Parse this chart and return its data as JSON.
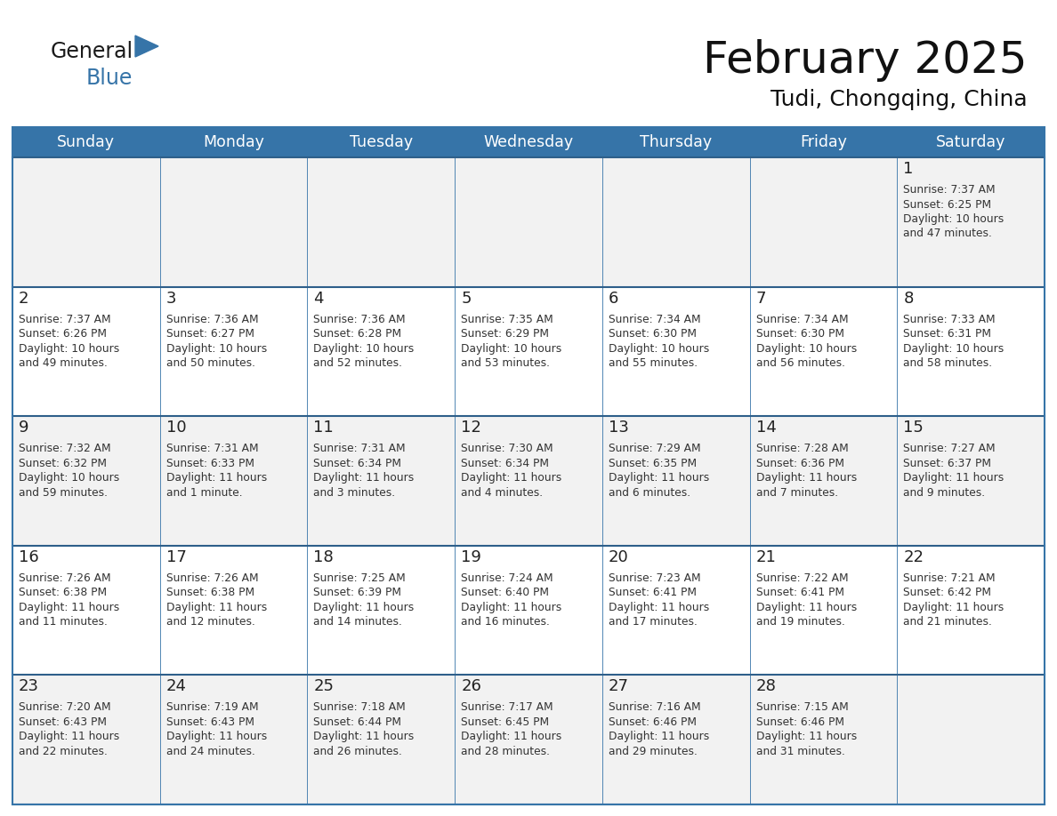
{
  "title": "February 2025",
  "subtitle": "Tudi, Chongqing, China",
  "header_bg": "#3674a8",
  "header_text_color": "#FFFFFF",
  "cell_bg_odd": "#f2f2f2",
  "cell_bg_even": "#ffffff",
  "cell_border_color": "#3674a8",
  "day_number_color": "#222222",
  "cell_text_color": "#333333",
  "week_sep_color": "#2e5f8a",
  "days_of_week": [
    "Sunday",
    "Monday",
    "Tuesday",
    "Wednesday",
    "Thursday",
    "Friday",
    "Saturday"
  ],
  "weeks": [
    [
      {
        "day": null,
        "info": ""
      },
      {
        "day": null,
        "info": ""
      },
      {
        "day": null,
        "info": ""
      },
      {
        "day": null,
        "info": ""
      },
      {
        "day": null,
        "info": ""
      },
      {
        "day": null,
        "info": ""
      },
      {
        "day": 1,
        "info": "Sunrise: 7:37 AM\nSunset: 6:25 PM\nDaylight: 10 hours\nand 47 minutes."
      }
    ],
    [
      {
        "day": 2,
        "info": "Sunrise: 7:37 AM\nSunset: 6:26 PM\nDaylight: 10 hours\nand 49 minutes."
      },
      {
        "day": 3,
        "info": "Sunrise: 7:36 AM\nSunset: 6:27 PM\nDaylight: 10 hours\nand 50 minutes."
      },
      {
        "day": 4,
        "info": "Sunrise: 7:36 AM\nSunset: 6:28 PM\nDaylight: 10 hours\nand 52 minutes."
      },
      {
        "day": 5,
        "info": "Sunrise: 7:35 AM\nSunset: 6:29 PM\nDaylight: 10 hours\nand 53 minutes."
      },
      {
        "day": 6,
        "info": "Sunrise: 7:34 AM\nSunset: 6:30 PM\nDaylight: 10 hours\nand 55 minutes."
      },
      {
        "day": 7,
        "info": "Sunrise: 7:34 AM\nSunset: 6:30 PM\nDaylight: 10 hours\nand 56 minutes."
      },
      {
        "day": 8,
        "info": "Sunrise: 7:33 AM\nSunset: 6:31 PM\nDaylight: 10 hours\nand 58 minutes."
      }
    ],
    [
      {
        "day": 9,
        "info": "Sunrise: 7:32 AM\nSunset: 6:32 PM\nDaylight: 10 hours\nand 59 minutes."
      },
      {
        "day": 10,
        "info": "Sunrise: 7:31 AM\nSunset: 6:33 PM\nDaylight: 11 hours\nand 1 minute."
      },
      {
        "day": 11,
        "info": "Sunrise: 7:31 AM\nSunset: 6:34 PM\nDaylight: 11 hours\nand 3 minutes."
      },
      {
        "day": 12,
        "info": "Sunrise: 7:30 AM\nSunset: 6:34 PM\nDaylight: 11 hours\nand 4 minutes."
      },
      {
        "day": 13,
        "info": "Sunrise: 7:29 AM\nSunset: 6:35 PM\nDaylight: 11 hours\nand 6 minutes."
      },
      {
        "day": 14,
        "info": "Sunrise: 7:28 AM\nSunset: 6:36 PM\nDaylight: 11 hours\nand 7 minutes."
      },
      {
        "day": 15,
        "info": "Sunrise: 7:27 AM\nSunset: 6:37 PM\nDaylight: 11 hours\nand 9 minutes."
      }
    ],
    [
      {
        "day": 16,
        "info": "Sunrise: 7:26 AM\nSunset: 6:38 PM\nDaylight: 11 hours\nand 11 minutes."
      },
      {
        "day": 17,
        "info": "Sunrise: 7:26 AM\nSunset: 6:38 PM\nDaylight: 11 hours\nand 12 minutes."
      },
      {
        "day": 18,
        "info": "Sunrise: 7:25 AM\nSunset: 6:39 PM\nDaylight: 11 hours\nand 14 minutes."
      },
      {
        "day": 19,
        "info": "Sunrise: 7:24 AM\nSunset: 6:40 PM\nDaylight: 11 hours\nand 16 minutes."
      },
      {
        "day": 20,
        "info": "Sunrise: 7:23 AM\nSunset: 6:41 PM\nDaylight: 11 hours\nand 17 minutes."
      },
      {
        "day": 21,
        "info": "Sunrise: 7:22 AM\nSunset: 6:41 PM\nDaylight: 11 hours\nand 19 minutes."
      },
      {
        "day": 22,
        "info": "Sunrise: 7:21 AM\nSunset: 6:42 PM\nDaylight: 11 hours\nand 21 minutes."
      }
    ],
    [
      {
        "day": 23,
        "info": "Sunrise: 7:20 AM\nSunset: 6:43 PM\nDaylight: 11 hours\nand 22 minutes."
      },
      {
        "day": 24,
        "info": "Sunrise: 7:19 AM\nSunset: 6:43 PM\nDaylight: 11 hours\nand 24 minutes."
      },
      {
        "day": 25,
        "info": "Sunrise: 7:18 AM\nSunset: 6:44 PM\nDaylight: 11 hours\nand 26 minutes."
      },
      {
        "day": 26,
        "info": "Sunrise: 7:17 AM\nSunset: 6:45 PM\nDaylight: 11 hours\nand 28 minutes."
      },
      {
        "day": 27,
        "info": "Sunrise: 7:16 AM\nSunset: 6:46 PM\nDaylight: 11 hours\nand 29 minutes."
      },
      {
        "day": 28,
        "info": "Sunrise: 7:15 AM\nSunset: 6:46 PM\nDaylight: 11 hours\nand 31 minutes."
      },
      {
        "day": null,
        "info": ""
      }
    ]
  ],
  "logo_general_color": "#1a1a1a",
  "logo_blue_color": "#3674a8",
  "figsize": [
    11.88,
    9.18
  ],
  "dpi": 100
}
